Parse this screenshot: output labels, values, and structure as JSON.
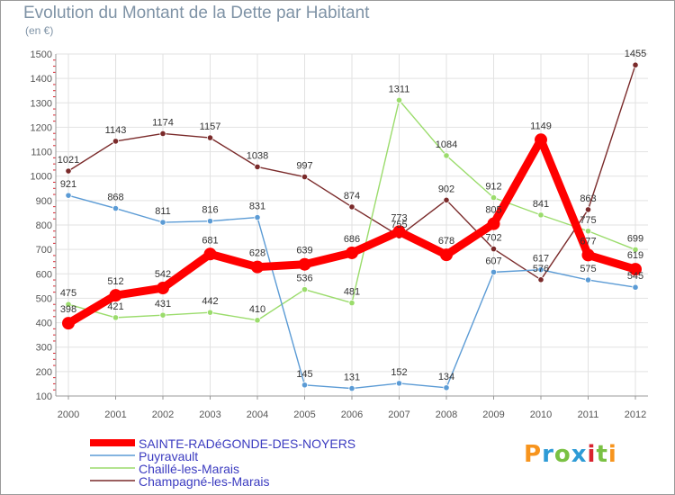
{
  "title": "Evolution du Montant de la Dette par Habitant",
  "unit": "(en €)",
  "logo": {
    "text": "Proxiti",
    "colors": [
      "#f7941d",
      "#2e9bd6",
      "#7ac143",
      "#2e9bd6",
      "#d9232e",
      "#7ac143",
      "#f7941d"
    ]
  },
  "chart_data": {
    "type": "line",
    "categories": [
      "2000",
      "2001",
      "2002",
      "2003",
      "2004",
      "2005",
      "2006",
      "2007",
      "2008",
      "2009",
      "2010",
      "2011",
      "2012"
    ],
    "ylim": [
      100,
      1500
    ],
    "yticks": [
      100,
      200,
      300,
      400,
      500,
      600,
      700,
      800,
      900,
      1000,
      1100,
      1200,
      1300,
      1400,
      1500
    ],
    "grid": true,
    "legend_position": "bottom-left",
    "series": [
      {
        "name": "SAINTE-RADéGONDE-DES-NOYERS",
        "color": "#ff0000",
        "values": [
          398,
          512,
          542,
          681,
          628,
          639,
          686,
          773,
          678,
          805,
          1149,
          677,
          619
        ],
        "labels": [
          "398",
          "512",
          "542",
          "681",
          "628",
          "639",
          "686",
          "773",
          "678",
          "805",
          "1149",
          "677",
          "619"
        ]
      },
      {
        "name": "Puyravault",
        "color": "#5b9bd5",
        "values": [
          921,
          868,
          811,
          816,
          831,
          145,
          131,
          152,
          134,
          607,
          617,
          575,
          545
        ],
        "labels": [
          "921",
          "868",
          "811",
          "816",
          "831",
          "145",
          "131",
          "152",
          "134",
          "607",
          "617",
          "575",
          "545"
        ]
      },
      {
        "name": "Chaillé-les-Marais",
        "color": "#9bdc6c",
        "values": [
          475,
          421,
          431,
          442,
          410,
          536,
          481,
          1311,
          1084,
          912,
          841,
          775,
          699
        ],
        "labels": [
          "475",
          "421",
          "431",
          "442",
          "410",
          "536",
          "481",
          "1311",
          "1084",
          "912",
          "841",
          "775",
          "699"
        ]
      },
      {
        "name": "Champagné-les-Marais",
        "color": "#7a2a2a",
        "values": [
          1021,
          1143,
          1174,
          1157,
          1038,
          997,
          874,
          755,
          902,
          702,
          576,
          863,
          1455
        ],
        "labels": [
          "1021",
          "1143",
          "1174",
          "1157",
          "1038",
          "997",
          "874",
          "755",
          "902",
          "702",
          "576",
          "863",
          "1455"
        ]
      }
    ]
  }
}
